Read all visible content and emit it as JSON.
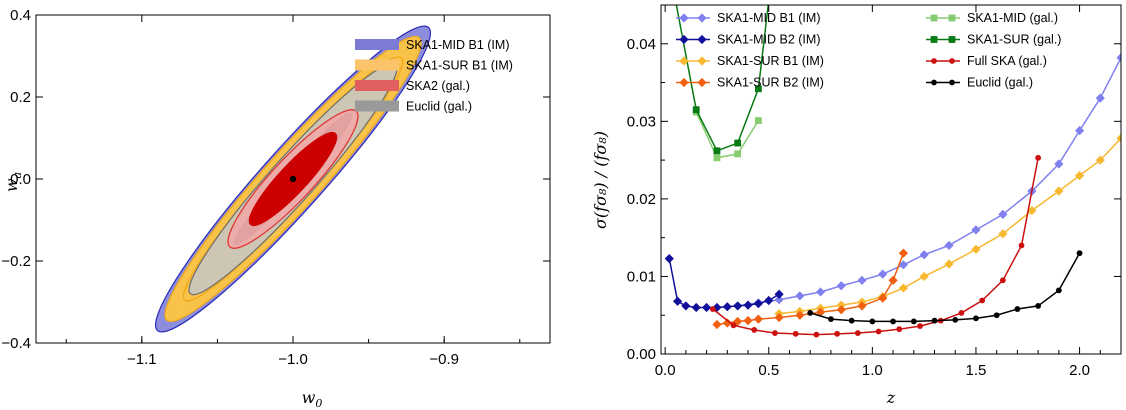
{
  "chart_data": [
    {
      "type": "contour",
      "xlabel": "w",
      "xlabel_sub": "0",
      "ylabel": "w",
      "ylabel_sub": "a",
      "xlim": [
        -1.17,
        -0.83
      ],
      "ylim": [
        -0.4,
        0.4
      ],
      "xticks": [
        {
          "v": -1.1,
          "label": "−1.1"
        },
        {
          "v": -1.0,
          "label": "−1.0"
        },
        {
          "v": -0.9,
          "label": "−0.9"
        }
      ],
      "yticks": [
        {
          "v": -0.4,
          "label": "−0.4"
        },
        {
          "v": -0.2,
          "label": "−0.2"
        },
        {
          "v": 0.0,
          "label": "0.0"
        },
        {
          "v": 0.2,
          "label": "0.2"
        },
        {
          "v": 0.4,
          "label": "0.4"
        }
      ],
      "fiducial": {
        "w0": -1.0,
        "wa": 0.0
      },
      "legend": [
        {
          "label": "SKA1-MID B1 (IM)",
          "color": "#7b7bd6"
        },
        {
          "label": "SKA1-SUR B1 (IM)",
          "color": "#fbc36a"
        },
        {
          "label": "SKA2 (gal.)",
          "color": "#e06060"
        },
        {
          "label": "Euclid (gal.)",
          "color": "#9a9a9a"
        }
      ],
      "ellipses": [
        {
          "series": "SKA1-MID B1 (IM)",
          "level": "2sigma",
          "rx": 0.1345,
          "ry": 0.0203,
          "angle": -48.2,
          "fill": "#8d8ddd",
          "stroke": "#2a2ab8",
          "opacity": 1
        },
        {
          "series": "SKA1-SUR B1 (IM)",
          "level": "2sigma",
          "rx": 0.1253,
          "ry": 0.0189,
          "angle": -48.2,
          "fill": "#f8c348",
          "stroke": "#f0a818",
          "opacity": 1
        },
        {
          "series": "SKA1-SUR B1 (IM)",
          "level": "1sigma",
          "rx": 0.1075,
          "ry": 0.0146,
          "angle": -48.2,
          "fill": "#f8c348",
          "stroke": "#f0a818",
          "opacity": 1
        },
        {
          "series": "Euclid (gal.)",
          "level": "2sigma",
          "rx": 0.1018,
          "ry": 0.0147,
          "angle": -48.2,
          "fill": "#cdc6b4",
          "stroke": "#707070",
          "opacity": 1
        },
        {
          "series": "Euclid (gal.)",
          "level": "1sigma",
          "rx": 0.0578,
          "ry": 0.0069,
          "angle": -48.2,
          "fill": "#6a6a6a",
          "stroke": "#555555",
          "opacity": 1
        },
        {
          "series": "SKA2 (gal.)",
          "level": "2sigma",
          "rx": 0.0613,
          "ry": 0.0136,
          "angle": -47,
          "fill": "#f0a8a8",
          "stroke": "#e03030",
          "opacity": 0.9
        },
        {
          "series": "SKA2 (gal.)",
          "level": "1sigma",
          "rx": 0.0411,
          "ry": 0.0092,
          "angle": -47,
          "fill": "#cc0000",
          "stroke": "#cc0000",
          "opacity": 1
        }
      ]
    },
    {
      "type": "line",
      "xlabel": "z",
      "ylabel": "σ(fσ₈) / (fσ₈)",
      "xlim": [
        -0.02,
        2.2
      ],
      "ylim": [
        0.0,
        0.045
      ],
      "xticks": [
        {
          "v": 0.0,
          "label": "0.0"
        },
        {
          "v": 0.5,
          "label": "0.5"
        },
        {
          "v": 1.0,
          "label": "1.0"
        },
        {
          "v": 1.5,
          "label": "1.5"
        },
        {
          "v": 2.0,
          "label": "2.0"
        }
      ],
      "yticks": [
        {
          "v": 0.0,
          "label": "0.00"
        },
        {
          "v": 0.01,
          "label": "0.01"
        },
        {
          "v": 0.02,
          "label": "0.02"
        },
        {
          "v": 0.03,
          "label": "0.03"
        },
        {
          "v": 0.04,
          "label": "0.04"
        }
      ],
      "series": [
        {
          "name": "SKA1-MID B1 (IM)",
          "color": "#8080f0",
          "marker": "diamond",
          "x": [
            0.35,
            0.45,
            0.55,
            0.65,
            0.75,
            0.85,
            0.95,
            1.05,
            1.15,
            1.25,
            1.37,
            1.5,
            1.63,
            1.77,
            1.9,
            2.0,
            2.1,
            2.2
          ],
          "y": [
            0.0062,
            0.0066,
            0.007,
            0.0075,
            0.008,
            0.0088,
            0.0095,
            0.0103,
            0.0115,
            0.0128,
            0.014,
            0.016,
            0.018,
            0.021,
            0.0245,
            0.0288,
            0.033,
            0.0382
          ]
        },
        {
          "name": "SKA1-MID B2 (IM)",
          "color": "#10109a",
          "marker": "diamond",
          "x": [
            0.02,
            0.06,
            0.1,
            0.15,
            0.2,
            0.25,
            0.3,
            0.35,
            0.4,
            0.45,
            0.5,
            0.55
          ],
          "y": [
            0.0123,
            0.0068,
            0.0062,
            0.006,
            0.006,
            0.006,
            0.0061,
            0.0062,
            0.0063,
            0.0065,
            0.0069,
            0.0077
          ]
        },
        {
          "name": "SKA1-SUR B1 (IM)",
          "color": "#f8b830",
          "marker": "diamond",
          "x": [
            0.55,
            0.65,
            0.75,
            0.85,
            0.95,
            1.05,
            1.15,
            1.25,
            1.37,
            1.5,
            1.63,
            1.77,
            1.9,
            2.0,
            2.1,
            2.2
          ],
          "y": [
            0.0052,
            0.0055,
            0.0059,
            0.0063,
            0.0067,
            0.0074,
            0.0085,
            0.01,
            0.0116,
            0.0135,
            0.0155,
            0.0185,
            0.021,
            0.023,
            0.025,
            0.0278
          ]
        },
        {
          "name": "SKA1-SUR B2 (IM)",
          "color": "#f06010",
          "marker": "diamond",
          "x": [
            0.25,
            0.3,
            0.35,
            0.4,
            0.45,
            0.55,
            0.65,
            0.75,
            0.85,
            0.95,
            1.05,
            1.1,
            1.15
          ],
          "y": [
            0.0038,
            0.004,
            0.0042,
            0.0043,
            0.0045,
            0.0047,
            0.005,
            0.0054,
            0.0057,
            0.0062,
            0.0072,
            0.0095,
            0.013
          ]
        },
        {
          "name": "SKA1-MID (gal.)",
          "color": "#88cc70",
          "marker": "square",
          "x": [
            0.15,
            0.25,
            0.35,
            0.45
          ],
          "y": [
            0.0312,
            0.0253,
            0.0258,
            0.0301
          ]
        },
        {
          "name": "SKA1-SUR (gal.)",
          "color": "#0a7a14",
          "marker": "square",
          "x": [
            0.05,
            0.15,
            0.25,
            0.35,
            0.45,
            0.5
          ],
          "y": [
            0.0456,
            0.0315,
            0.0262,
            0.0272,
            0.0342,
            0.0456
          ]
        },
        {
          "name": "Full SKA (gal.)",
          "color": "#cc1010",
          "marker": "circle",
          "x": [
            0.23,
            0.33,
            0.43,
            0.53,
            0.63,
            0.73,
            0.83,
            0.93,
            1.03,
            1.13,
            1.23,
            1.33,
            1.43,
            1.53,
            1.63,
            1.72,
            1.8
          ],
          "y": [
            0.0058,
            0.0037,
            0.0031,
            0.0027,
            0.0026,
            0.0025,
            0.0026,
            0.0027,
            0.0029,
            0.0032,
            0.0036,
            0.0043,
            0.0053,
            0.0069,
            0.0095,
            0.014,
            0.0253
          ]
        },
        {
          "name": "Euclid (gal.)",
          "color": "#000000",
          "marker": "circle",
          "x": [
            0.7,
            0.8,
            0.9,
            1.0,
            1.1,
            1.2,
            1.3,
            1.4,
            1.5,
            1.6,
            1.7,
            1.8,
            1.9,
            2.0
          ],
          "y": [
            0.0053,
            0.0045,
            0.0043,
            0.0042,
            0.0042,
            0.0042,
            0.0043,
            0.0044,
            0.0046,
            0.005,
            0.0058,
            0.0062,
            0.0082,
            0.013
          ]
        }
      ],
      "legend_col1": [
        "SKA1-MID B1 (IM)",
        "SKA1-MID B2 (IM)",
        "SKA1-SUR B1 (IM)",
        "SKA1-SUR B2 (IM)"
      ],
      "legend_col2": [
        "SKA1-MID (gal.)",
        "SKA1-SUR (gal.)",
        "Full SKA (gal.)",
        "Euclid (gal.)"
      ]
    }
  ]
}
